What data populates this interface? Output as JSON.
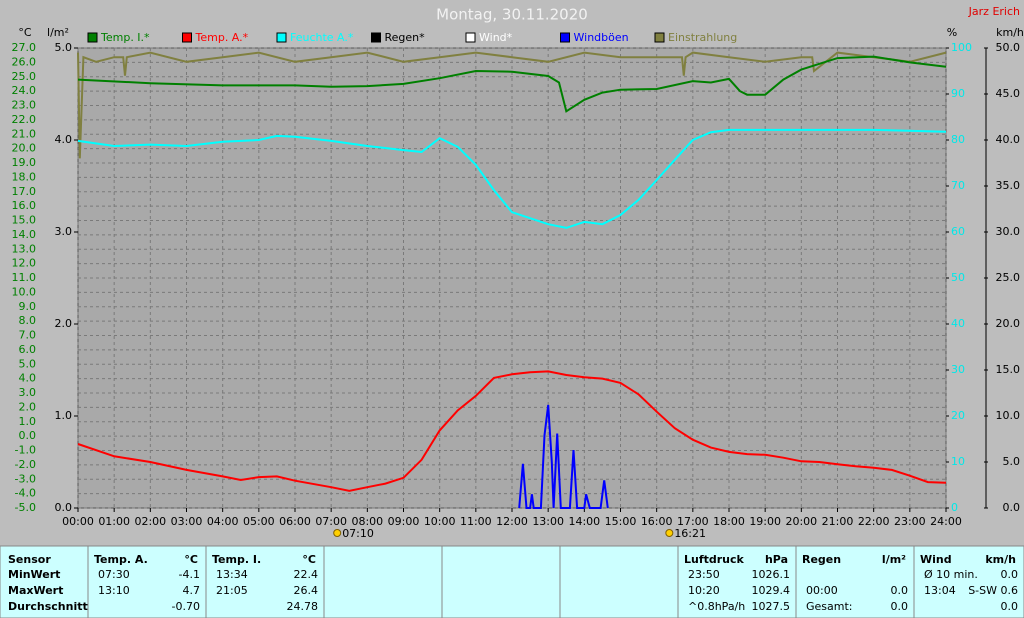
{
  "chart_data": {
    "type": "line",
    "title": "Montag, 30.11.2020",
    "author": "Jarz Erich",
    "y_label": "°C",
    "y2_label": "l/m²",
    "y3_label": "%",
    "y4_label": "km/h",
    "grid": true,
    "ylim": [
      -5,
      27
    ],
    "yticks": [
      {
        "value": -5,
        "label": "-5.0"
      },
      {
        "value": -4,
        "label": "-4.0"
      },
      {
        "value": -3,
        "label": "-3.0"
      },
      {
        "value": -2,
        "label": "-2.0"
      },
      {
        "value": -1,
        "label": "-1.0"
      },
      {
        "value": 0,
        "label": "0.0"
      },
      {
        "value": 1,
        "label": "1.0"
      },
      {
        "value": 2,
        "label": "2.0"
      },
      {
        "value": 3,
        "label": "3.0"
      },
      {
        "value": 4,
        "label": "4.0"
      },
      {
        "value": 5,
        "label": "5.0"
      },
      {
        "value": 6,
        "label": "6.0"
      },
      {
        "value": 7,
        "label": "7.0"
      },
      {
        "value": 8,
        "label": "8.0"
      },
      {
        "value": 9,
        "label": "9.0"
      },
      {
        "value": 10,
        "label": "10.0"
      },
      {
        "value": 11,
        "label": "11.0"
      },
      {
        "value": 12,
        "label": "12.0"
      },
      {
        "value": 13,
        "label": "13.0"
      },
      {
        "value": 14,
        "label": "14.0"
      },
      {
        "value": 15,
        "label": "15.0"
      },
      {
        "value": 16,
        "label": "16.0"
      },
      {
        "value": 17,
        "label": "17.0"
      },
      {
        "value": 18,
        "label": "18.0"
      },
      {
        "value": 19,
        "label": "19.0"
      },
      {
        "value": 20,
        "label": "20.0"
      },
      {
        "value": 21,
        "label": "21.0"
      },
      {
        "value": 22,
        "label": "22.0"
      },
      {
        "value": 23,
        "label": "23.0"
      },
      {
        "value": 24,
        "label": "24.0"
      },
      {
        "value": 25,
        "label": "25.0"
      },
      {
        "value": 26,
        "label": "26.0"
      },
      {
        "value": 27,
        "label": "27.0"
      }
    ],
    "y2lim": [
      0,
      5
    ],
    "y2ticks": [
      {
        "value": 0,
        "label": "0.0"
      },
      {
        "value": 1,
        "label": "1.0"
      },
      {
        "value": 2,
        "label": "2.0"
      },
      {
        "value": 3,
        "label": "3.0"
      },
      {
        "value": 4,
        "label": "4.0"
      },
      {
        "value": 5,
        "label": "5.0"
      }
    ],
    "y3lim": [
      0,
      100
    ],
    "y3ticks": [
      0,
      10,
      20,
      30,
      40,
      50,
      60,
      70,
      80,
      90,
      100
    ],
    "y4lim": [
      0,
      50
    ],
    "y4ticks": [
      {
        "value": 0,
        "label": "0.0"
      },
      {
        "value": 5,
        "label": "5.0"
      },
      {
        "value": 10,
        "label": "10.0"
      },
      {
        "value": 15,
        "label": "15.0"
      },
      {
        "value": 20,
        "label": "20.0"
      },
      {
        "value": 25,
        "label": "25.0"
      },
      {
        "value": 30,
        "label": "30.0"
      },
      {
        "value": 35,
        "label": "35.0"
      },
      {
        "value": 40,
        "label": "40.0"
      },
      {
        "value": 45,
        "label": "45.0"
      },
      {
        "value": 50,
        "label": "50.0"
      }
    ],
    "xlim": [
      0,
      24
    ],
    "xticks": [
      {
        "value": 0,
        "label": "00:00"
      },
      {
        "value": 1,
        "label": "01:00"
      },
      {
        "value": 2,
        "label": "02:00"
      },
      {
        "value": 3,
        "label": "03:00"
      },
      {
        "value": 4,
        "label": "04:00"
      },
      {
        "value": 5,
        "label": "05:00"
      },
      {
        "value": 6,
        "label": "06:00"
      },
      {
        "value": 7,
        "label": "07:00"
      },
      {
        "value": 8,
        "label": "08:00"
      },
      {
        "value": 9,
        "label": "09:00"
      },
      {
        "value": 10,
        "label": "10:00"
      },
      {
        "value": 11,
        "label": "11:00"
      },
      {
        "value": 12,
        "label": "12:00"
      },
      {
        "value": 13,
        "label": "13:00"
      },
      {
        "value": 14,
        "label": "14:00"
      },
      {
        "value": 15,
        "label": "15:00"
      },
      {
        "value": 16,
        "label": "16:00"
      },
      {
        "value": 17,
        "label": "17:00"
      },
      {
        "value": 18,
        "label": "18:00"
      },
      {
        "value": 19,
        "label": "19:00"
      },
      {
        "value": 20,
        "label": "20:00"
      },
      {
        "value": 21,
        "label": "21:00"
      },
      {
        "value": 22,
        "label": "22:00"
      },
      {
        "value": 23,
        "label": "23:00"
      },
      {
        "value": 24,
        "label": "24:00"
      }
    ],
    "annotations": [
      {
        "x": 7.1667,
        "label": "07:10"
      },
      {
        "x": 16.35,
        "label": "16:21"
      }
    ],
    "series": [
      {
        "name": "Temp. I.*",
        "color": "#008000",
        "axis": "y",
        "x": [
          0,
          2,
          4,
          6,
          7,
          8,
          9,
          10,
          11,
          12,
          13,
          13.3,
          13.5,
          14,
          14.5,
          15,
          16,
          17,
          17.5,
          18,
          18.3,
          18.5,
          19,
          19.5,
          20,
          21,
          22,
          23,
          24
        ],
        "values": [
          24.8,
          24.55,
          24.4,
          24.4,
          24.3,
          24.35,
          24.5,
          24.9,
          25.4,
          25.35,
          25.05,
          24.6,
          22.6,
          23.4,
          23.9,
          24.1,
          24.15,
          24.7,
          24.6,
          24.85,
          24.0,
          23.75,
          23.75,
          24.8,
          25.5,
          26.3,
          26.4,
          26.0,
          25.7
        ]
      },
      {
        "name": "Temp. A.*",
        "color": "#ff0000",
        "axis": "y",
        "x": [
          0,
          1,
          2,
          3,
          4,
          4.5,
          5,
          5.5,
          6,
          7,
          7.5,
          8,
          8.5,
          9,
          9.5,
          10,
          10.5,
          11,
          11.5,
          12,
          12.5,
          13,
          13.5,
          14,
          14.5,
          15,
          15.5,
          16,
          16.5,
          17,
          17.5,
          18,
          18.5,
          19,
          19.5,
          20,
          20.5,
          21,
          21.5,
          22,
          22.5,
          23,
          23.5,
          24
        ],
        "values": [
          -0.55,
          -1.4,
          -1.8,
          -2.35,
          -2.8,
          -3.05,
          -2.85,
          -2.8,
          -3.1,
          -3.55,
          -3.8,
          -3.55,
          -3.3,
          -2.9,
          -1.65,
          0.4,
          1.8,
          2.8,
          4.05,
          4.3,
          4.45,
          4.5,
          4.25,
          4.1,
          4.0,
          3.7,
          2.9,
          1.7,
          0.55,
          -0.25,
          -0.8,
          -1.1,
          -1.25,
          -1.3,
          -1.5,
          -1.75,
          -1.8,
          -1.95,
          -2.1,
          -2.2,
          -2.35,
          -2.75,
          -3.2,
          -3.25
        ]
      },
      {
        "name": "Feuchte A.*",
        "color": "#00ffff",
        "axis": "y3",
        "x": [
          0,
          1,
          2,
          3,
          4,
          5,
          5.5,
          6,
          7,
          8,
          9,
          9.5,
          10,
          10.5,
          11,
          11.5,
          12,
          12.5,
          13,
          13.5,
          14,
          14.5,
          15,
          15.5,
          16,
          16.5,
          17,
          17.5,
          18,
          20,
          22,
          24
        ],
        "values": [
          79.8,
          78.7,
          79,
          78.7,
          79.6,
          80,
          80.9,
          80.7,
          79.8,
          78.7,
          77.8,
          77.4,
          80.4,
          78.5,
          74.6,
          69.1,
          64.3,
          63,
          61.7,
          60.9,
          62.2,
          61.7,
          63.7,
          67,
          71.3,
          75.7,
          80,
          81.7,
          82.2,
          82.2,
          82.2,
          81.8
        ]
      },
      {
        "name": "Regen*",
        "color": "#000000",
        "axis": "y2",
        "x": [],
        "values": []
      },
      {
        "name": "Wind*",
        "color": "#ffffff",
        "axis": "y4",
        "x": [],
        "values": []
      },
      {
        "name": "Windböen",
        "color": "#0000ff",
        "axis": "y4",
        "x": [
          12.2,
          12.3,
          12.4,
          12.5,
          12.55,
          12.6,
          12.8,
          12.9,
          13,
          13.1,
          13.15,
          13.25,
          13.35,
          13.6,
          13.7,
          13.8,
          14,
          14.05,
          14.15,
          14.45,
          14.55,
          14.65
        ],
        "values": [
          0,
          4.8,
          0,
          0,
          1.5,
          0,
          0,
          7.9,
          11.2,
          5,
          0,
          8.1,
          0,
          0,
          6.3,
          0,
          0,
          1.5,
          0,
          0,
          3,
          0
        ]
      },
      {
        "name": "Einstrahlung",
        "color": "#808040",
        "axis": "y3",
        "x": [
          0,
          0.05,
          0.15,
          0.5,
          1,
          1.25,
          1.3,
          1.35,
          2,
          3,
          4,
          5,
          6,
          7,
          8,
          9,
          10,
          11,
          12,
          13,
          14,
          15,
          16,
          16.7,
          16.75,
          16.8,
          17,
          18,
          19,
          20,
          20.3,
          20.35,
          21,
          22,
          23,
          24
        ],
        "values": [
          99,
          76,
          98,
          97,
          98,
          98,
          94,
          98,
          99,
          97,
          98,
          99,
          97,
          98,
          99,
          97,
          98,
          99,
          98,
          97,
          99,
          98,
          98,
          98,
          94,
          98,
          99,
          98,
          97,
          98,
          98,
          95,
          99,
          98,
          97,
          99
        ]
      }
    ]
  },
  "stats": {
    "label_column": {
      "header": "Sensor",
      "rows": [
        "MinWert",
        "MaxWert",
        "Durchschnitt"
      ]
    },
    "blocks_left": [
      {
        "title": "Temp. A.",
        "unit": "°C",
        "rows": [
          {
            "time": "07:30",
            "value": "-4.1"
          },
          {
            "time": "13:10",
            "value": "4.7"
          },
          {
            "value": "-0.70"
          }
        ]
      },
      {
        "title": "Temp. I.",
        "unit": "°C",
        "rows": [
          {
            "time": "13:34",
            "value": "22.4"
          },
          {
            "time": "21:05",
            "value": "26.4"
          },
          {
            "value": "24.78"
          }
        ]
      }
    ],
    "blocks_right": [
      {
        "title": "Luftdruck",
        "unit": "hPa",
        "rows": [
          {
            "time": "23:50",
            "value": "1026.1"
          },
          {
            "time": "10:20",
            "value": "1029.4"
          },
          {
            "time": "^0.8hPa/h",
            "value": "1027.5"
          }
        ]
      },
      {
        "title": "Regen",
        "unit": "l/m²",
        "rows": [
          null,
          {
            "time": "00:00",
            "value": "0.0"
          },
          {
            "time": "Gesamt:",
            "value": "0.0"
          }
        ]
      },
      {
        "title": "Wind",
        "unit": "km/h",
        "rows": [
          {
            "time": "Ø 10 min.",
            "value": "0.0"
          },
          {
            "time": "13:04",
            "value": "S-SW 0.6"
          },
          {
            "value": "0.0"
          }
        ]
      }
    ]
  }
}
